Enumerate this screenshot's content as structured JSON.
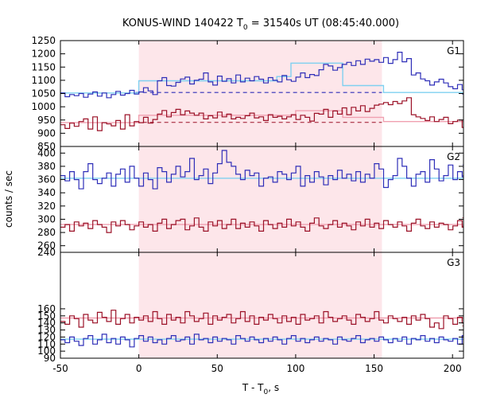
{
  "title": {
    "prefix": "KONUS-WIND 140422 T",
    "subscript": "0",
    "suffix": " = 31540s UT (08:45:40.000)"
  },
  "xlabel": {
    "prefix": "T - T",
    "subscript": "0",
    "suffix": ", s"
  },
  "ylabel": "counts / sec",
  "colors": {
    "highlight": "#fde6ea",
    "blue": "#2e2eb8",
    "red": "#9b1127",
    "bg_blue": "#5ab4e6",
    "bg_red": "#e86a88",
    "fit_blue": "#7fd0f0",
    "fit_red": "#f0a0b0"
  },
  "chart_data": {
    "type": "line",
    "x_range": [
      -50,
      207
    ],
    "x_ticks": [
      -50,
      0,
      50,
      100,
      150,
      200
    ],
    "bin_width": 2.944,
    "highlight_interval": [
      0,
      155
    ],
    "panels": [
      {
        "label": "G1",
        "ylim": [
          850,
          1250
        ],
        "y_ticks": [
          850,
          900,
          950,
          1000,
          1050,
          1100,
          1150,
          1200,
          1250
        ],
        "series": [
          {
            "color": "blue",
            "values": [
              1052,
              1038,
              1046,
              1042,
              1050,
              1036,
              1048,
              1056,
              1040,
              1052,
              1034,
              1046,
              1058,
              1044,
              1050,
              1062,
              1048,
              1056,
              1072,
              1060,
              1046,
              1098,
              1110,
              1080,
              1078,
              1092,
              1105,
              1112,
              1086,
              1100,
              1104,
              1128,
              1094,
              1082,
              1116,
              1096,
              1106,
              1090,
              1120,
              1094,
              1108,
              1098,
              1114,
              1104,
              1090,
              1110,
              1100,
              1094,
              1118,
              1102,
              1096,
              1112,
              1128,
              1110,
              1122,
              1118,
              1140,
              1160,
              1154,
              1138,
              1148,
              1160,
              1168,
              1156,
              1174,
              1160,
              1180,
              1172,
              1178,
              1168,
              1186,
              1164,
              1178,
              1206,
              1170,
              1182,
              1120,
              1128,
              1105,
              1098,
              1082,
              1094,
              1104,
              1090,
              1076,
              1068,
              1084,
              1064,
              1062,
              1048,
              1074,
              1062,
              1058,
              1072,
              1044,
              1066,
              1042,
              1070,
              1054,
              1060,
              1050,
              1072,
              1046,
              1056,
              1058,
              1060,
              1062,
              1046,
              1054,
              1050,
              1070,
              1048,
              1042,
              1058,
              1042,
              1048,
              1048,
              1050,
              1055,
              1048,
              1052,
              1045,
              1050,
              1048,
              1046,
              1052,
              1048,
              1050
            ]
          },
          {
            "color": "red",
            "values": [
              932,
              918,
              938,
              926,
              944,
              954,
              916,
              962,
              910,
              940,
              935,
              928,
              948,
              916,
              970,
              928,
              944,
              940,
              960,
              938,
              952,
              972,
              986,
              962,
              978,
              990,
              970,
              984,
              976,
              968,
              976,
              954,
              966,
              958,
              980,
              962,
              972,
              954,
              960,
              956,
              966,
              976,
              958,
              962,
              948,
              970,
              960,
              964,
              954,
              962,
              970,
              952,
              968,
              960,
              946,
              975,
              972,
              990,
              960,
              984,
              972,
              996,
              970,
              998,
              984,
              1004,
              982,
              994,
              1006,
              1010,
              1016,
              1008,
              1020,
              1012,
              1022,
              1034,
              970,
              962,
              956,
              948,
              962,
              944,
              952,
              960,
              936,
              944,
              950,
              922,
              936,
              944,
              930,
              948,
              926,
              935,
              930,
              946,
              932,
              950,
              940,
              948,
              930,
              952,
              944,
              940,
              948,
              936,
              950,
              945,
              945,
              952,
              938,
              948,
              944,
              952,
              942,
              948,
              944,
              950,
              946,
              944,
              950,
              948,
              944,
              948
            ]
          }
        ],
        "fit_lines": [
          {
            "color": "fit_blue",
            "steps": [
              [
                -50,
                1052
              ],
              [
                0,
                1052
              ],
              [
                0,
                1098
              ],
              [
                88,
                1098
              ],
              [
                88,
                1114
              ],
              [
                97,
                1114
              ],
              [
                97,
                1165
              ],
              [
                130,
                1165
              ],
              [
                130,
                1080
              ],
              [
                156,
                1080
              ],
              [
                156,
                1054
              ],
              [
                207,
                1054
              ]
            ]
          },
          {
            "color": "fit_red",
            "steps": [
              [
                -50,
                940
              ],
              [
                0,
                940
              ],
              [
                0,
                968
              ],
              [
                100,
                968
              ],
              [
                100,
                985
              ],
              [
                130,
                985
              ],
              [
                130,
                960
              ],
              [
                156,
                960
              ],
              [
                156,
                944
              ],
              [
                207,
                944
              ]
            ]
          }
        ],
        "background_levels": [
          {
            "color": "blue",
            "value": 1054,
            "style": "dashed"
          },
          {
            "color": "red",
            "value": 941,
            "style": "dashed"
          }
        ]
      },
      {
        "label": "G2",
        "ylim": [
          250,
          410
        ],
        "y_ticks": [
          260,
          280,
          300,
          320,
          340,
          360,
          380,
          400
        ],
        "series": [
          {
            "color": "blue",
            "values": [
              366,
              358,
              372,
              360,
              346,
              372,
              384,
              360,
              354,
              362,
              370,
              350,
              368,
              376,
              356,
              380,
              362,
              350,
              370,
              360,
              346,
              378,
              372,
              356,
              368,
              380,
              364,
              372,
              392,
              360,
              366,
              376,
              354,
              370,
              384,
              404,
              386,
              380,
              368,
              360,
              374,
              366,
              370,
              350,
              362,
              364,
              356,
              372,
              368,
              360,
              370,
              380,
              350,
              366,
              356,
              372,
              364,
              352,
              366,
              360,
              374,
              362,
              368,
              358,
              372,
              356,
              368,
              362,
              384,
              376,
              348,
              360,
              366,
              392,
              380,
              362,
              350,
              368,
              372,
              356,
              390,
              376,
              358,
              366,
              382,
              360,
              372,
              364,
              378,
              356,
              366,
              382,
              356,
              374,
              364,
              372,
              360,
              368,
              354,
              386,
              362,
              358,
              370,
              366,
              356,
              378,
              364,
              360,
              372,
              358,
              366,
              370,
              352,
              368,
              362,
              374,
              360,
              364,
              366,
              372,
              358,
              362,
              370,
              364,
              360,
              366,
              362,
              360
            ]
          },
          {
            "color": "red",
            "values": [
              288,
              292,
              282,
              296,
              290,
              294,
              286,
              298,
              292,
              288,
              280,
              296,
              290,
              298,
              292,
              284,
              290,
              296,
              288,
              292,
              282,
              294,
              300,
              286,
              292,
              298,
              300,
              284,
              290,
              302,
              288,
              282,
              296,
              290,
              298,
              286,
              292,
              300,
              286,
              294,
              288,
              296,
              290,
              282,
              298,
              292,
              286,
              294,
              288,
              300,
              290,
              296,
              288,
              282,
              294,
              302,
              290,
              286,
              292,
              298,
              288,
              294,
              290,
              284,
              296,
              290,
              300,
              288,
              294,
              286,
              298,
              292,
              288,
              296,
              290,
              282,
              294,
              300,
              290,
              286,
              296,
              288,
              294,
              292,
              284,
              290,
              298,
              288,
              296,
              290,
              302,
              286,
              294,
              292,
              288,
              282,
              296,
              290,
              300,
              294,
              288,
              292,
              286,
              298,
              290,
              294,
              288,
              296,
              292,
              290,
              286,
              294,
              298,
              290,
              292,
              288,
              296,
              290,
              294,
              292,
              288,
              296,
              292,
              290,
              294,
              292,
              290,
              294
            ]
          }
        ],
        "fit_lines": [
          {
            "color": "fit_blue",
            "steps": [
              [
                -50,
                362
              ],
              [
                207,
                362
              ]
            ]
          },
          {
            "color": "fit_red",
            "steps": [
              [
                -50,
                292
              ],
              [
                207,
                292
              ]
            ]
          }
        ],
        "background_levels": []
      },
      {
        "label": "G3",
        "ylim": [
          90,
          240
        ],
        "y_ticks": [
          90,
          100,
          110,
          120,
          130,
          140,
          150,
          160,
          240
        ],
        "series": [
          {
            "color": "red",
            "values": [
              142,
              138,
              150,
              146,
              134,
              152,
              144,
              140,
              155,
              148,
              142,
              158,
              138,
              146,
              152,
              140,
              148,
              144,
              150,
              142,
              156,
              146,
              138,
              152,
              144,
              148,
              140,
              156,
              150,
              142,
              146,
              154,
              138,
              150,
              144,
              148,
              152,
              140,
              146,
              156,
              142,
              150,
              138,
              148,
              144,
              152,
              146,
              140,
              150,
              142,
              148,
              138,
              152,
              144,
              146,
              150,
              140,
              156,
              148,
              142,
              146,
              150,
              144,
              138,
              152,
              148,
              142,
              146,
              156,
              144,
              140,
              150,
              146,
              142,
              148,
              138,
              150,
              144,
              152,
              146,
              134,
              140,
              132,
              150,
              146,
              138,
              148,
              140,
              142,
              136,
              146,
              152,
              144,
              138,
              150,
              146,
              140,
              148,
              142,
              136,
              150,
              144,
              146,
              140,
              138,
              168,
              162,
              148,
              142,
              150,
              144,
              140,
              148,
              146,
              142,
              150,
              144,
              148,
              146,
              140,
              142,
              148,
              144,
              146,
              148,
              150,
              146,
              148
            ]
          },
          {
            "color": "blue",
            "values": [
              116,
              112,
              120,
              114,
              108,
              118,
              122,
              110,
              116,
              124,
              112,
              118,
              110,
              120,
              116,
              106,
              118,
              122,
              114,
              120,
              112,
              116,
              110,
              118,
              122,
              114,
              116,
              120,
              110,
              124,
              116,
              118,
              112,
              120,
              114,
              118,
              116,
              110,
              122,
              118,
              114,
              120,
              116,
              112,
              118,
              114,
              120,
              116,
              110,
              118,
              122,
              114,
              118,
              112,
              116,
              120,
              114,
              118,
              116,
              110,
              120,
              116,
              114,
              118,
              122,
              112,
              116,
              118,
              114,
              120,
              116,
              112,
              118,
              114,
              120,
              110,
              118,
              116,
              122,
              114,
              118,
              112,
              120,
              116,
              114,
              118,
              110,
              122,
              116,
              118,
              114,
              120,
              116,
              112,
              118,
              116,
              114,
              120,
              116,
              118,
              112,
              116,
              120,
              114,
              118,
              116,
              112,
              120,
              116,
              118,
              114,
              116,
              120,
              114,
              118,
              116,
              112,
              118,
              116,
              120,
              114,
              118,
              116,
              114,
              118,
              116,
              120,
              116
            ]
          }
        ],
        "fit_lines": [
          {
            "color": "fit_red",
            "steps": [
              [
                -50,
                147
              ],
              [
                207,
                147
              ]
            ]
          },
          {
            "color": "fit_blue",
            "steps": [
              [
                -50,
                117
              ],
              [
                207,
                117
              ]
            ]
          }
        ],
        "background_levels": []
      }
    ]
  }
}
